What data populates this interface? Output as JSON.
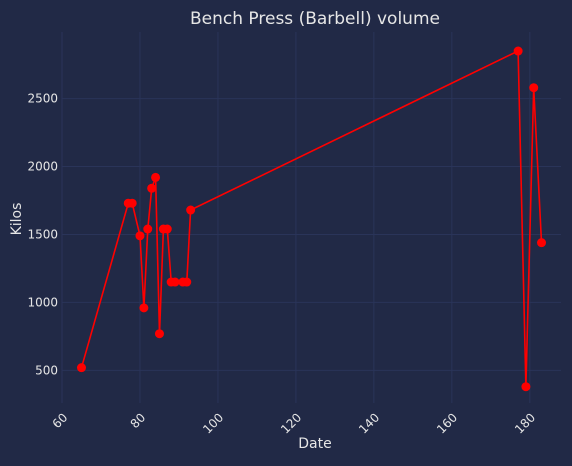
{
  "colors": {
    "background": "#212946",
    "grid": "#2A3459",
    "text": "#E6E6E6",
    "series": "#FF0000"
  },
  "chart_data": {
    "type": "line",
    "title": "Bench Press (Barbell) volume",
    "xlabel": "Date",
    "ylabel": "Kilos",
    "xlim": [
      60,
      188
    ],
    "ylim": [
      260,
      2990
    ],
    "xticks": [
      60,
      80,
      100,
      120,
      140,
      160,
      180
    ],
    "yticks": [
      500,
      1000,
      1500,
      2000,
      2500
    ],
    "grid": true,
    "series": [
      {
        "x": [
          65,
          77,
          78,
          80,
          81,
          82,
          83,
          84,
          85,
          86,
          87,
          88,
          89,
          91,
          92,
          93,
          177,
          179,
          181,
          183
        ],
        "y": [
          520,
          1730,
          1730,
          1490,
          960,
          1540,
          1840,
          1920,
          770,
          1540,
          1540,
          1150,
          1150,
          1150,
          1150,
          1680,
          2850,
          380,
          2580,
          1440
        ]
      }
    ]
  }
}
